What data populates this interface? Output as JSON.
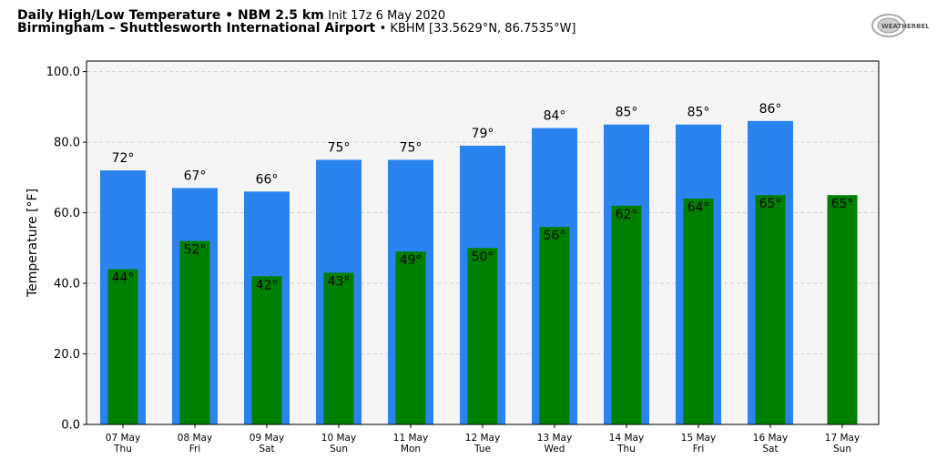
{
  "title": {
    "line1_bold": "Daily High/Low Temperature • NBM 2.5 km",
    "line1_normal": "Init 17z 6 May 2020",
    "line2_bold": "Birmingham – Shuttlesworth International Airport",
    "line2_normal": "• KBHM [33.5629°N, 86.7535°W]",
    "logo_text": "WeatherBELL"
  },
  "colors": {
    "high": "#2b83f0",
    "low": "#008000",
    "plot_bg": "#f4f4f4"
  },
  "chart_data": {
    "type": "bar",
    "title": "Daily High/Low Temperature",
    "xlabel": "",
    "ylabel": "Temperature [°F]",
    "ylim": [
      0,
      103
    ],
    "yticks": [
      "0.0",
      "20.0",
      "40.0",
      "60.0",
      "80.0",
      "100.0"
    ],
    "grid": true,
    "categories": [
      [
        "07 May",
        "Thu"
      ],
      [
        "08 May",
        "Fri"
      ],
      [
        "09 May",
        "Sat"
      ],
      [
        "10 May",
        "Sun"
      ],
      [
        "11 May",
        "Mon"
      ],
      [
        "12 May",
        "Tue"
      ],
      [
        "13 May",
        "Wed"
      ],
      [
        "14 May",
        "Thu"
      ],
      [
        "15 May",
        "Fri"
      ],
      [
        "16 May",
        "Sat"
      ],
      [
        "17 May",
        "Sun"
      ]
    ],
    "series": [
      {
        "name": "High",
        "values": [
          72,
          67,
          66,
          75,
          75,
          79,
          84,
          85,
          85,
          86,
          null
        ]
      },
      {
        "name": "Low",
        "values": [
          44,
          52,
          42,
          43,
          49,
          50,
          56,
          62,
          64,
          65,
          65
        ]
      }
    ]
  }
}
